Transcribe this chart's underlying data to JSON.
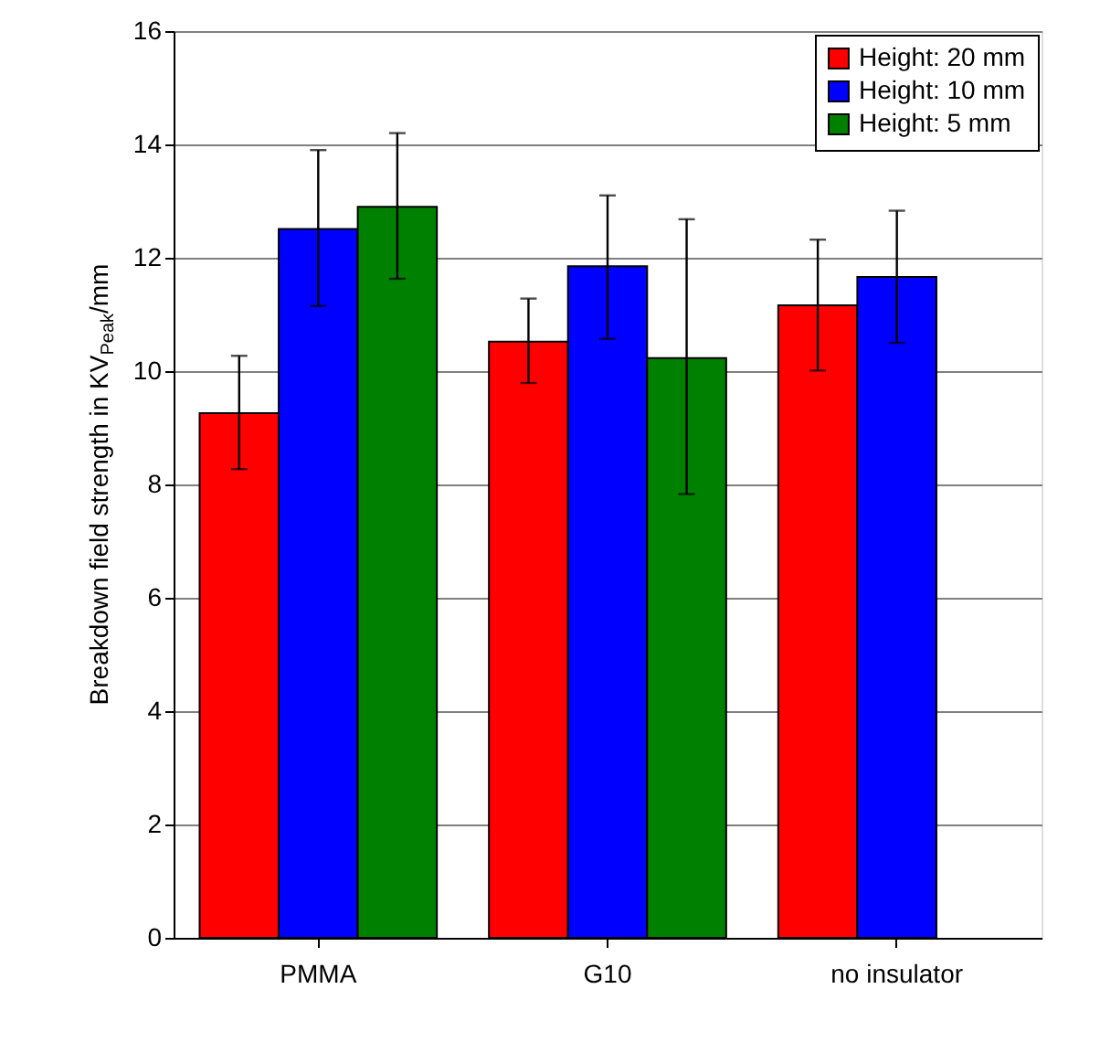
{
  "chart_data": {
    "type": "bar",
    "ylabel": "Breakdown field strength in KV$_{Peak}$/mm",
    "categories": [
      "PMMA",
      "G10",
      "no insulator"
    ],
    "series": [
      {
        "name": "Height: 20 mm",
        "color": "#ff0000",
        "values": [
          9.26,
          10.52,
          11.16
        ],
        "errors": [
          [
            8.27,
            10.27
          ],
          [
            9.79,
            11.28
          ],
          [
            10.01,
            12.32
          ]
        ]
      },
      {
        "name": "Height: 10 mm",
        "color": "#0000ff",
        "values": [
          12.51,
          11.85,
          11.66
        ],
        "errors": [
          [
            11.15,
            13.9
          ],
          [
            10.57,
            13.1
          ],
          [
            10.5,
            12.83
          ]
        ]
      },
      {
        "name": "Height: 5 mm",
        "color": "#008000",
        "values": [
          12.9,
          10.23,
          null
        ],
        "errors": [
          [
            11.63,
            14.2
          ],
          [
            7.83,
            12.68
          ],
          null
        ]
      }
    ],
    "ylim": [
      0,
      16
    ],
    "yticks": [
      0,
      2,
      4,
      6,
      8,
      10,
      12,
      14,
      16
    ],
    "grid": "y",
    "legend": "top right"
  }
}
